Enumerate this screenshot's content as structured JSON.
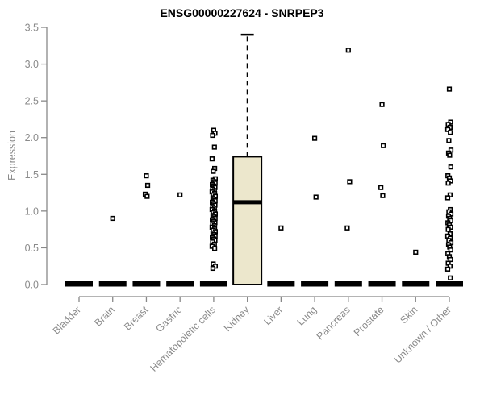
{
  "title": "ENSG00000227624 - SNRPEP3",
  "chart_data": {
    "type": "boxplot",
    "title": "ENSG00000227624 - SNRPEP3",
    "ylabel": "Expression",
    "xlabel": "",
    "ylim": [
      0.0,
      3.5
    ],
    "yticks": [
      0.0,
      0.5,
      1.0,
      1.5,
      2.0,
      2.5,
      3.0,
      3.5
    ],
    "grid": false,
    "legend": false,
    "colors": {
      "box_fill": "#ece7cc",
      "box_stroke": "#000000",
      "collapsed_box": "#000000",
      "axis": "#888888",
      "tick_text": "#8a8a8a",
      "title_text": "#000000",
      "outlier_stroke": "#000000",
      "outlier_fill": "#ffffff",
      "background": "#ffffff"
    },
    "categories": [
      "Bladder",
      "Brain",
      "Breast",
      "Gastric",
      "Hematopoietic cells",
      "Kidney",
      "Liver",
      "Lung",
      "Pancreas",
      "Prostate",
      "Skin",
      "Unknown / Other"
    ],
    "boxes": [
      {
        "category": "Bladder",
        "median": 0.0,
        "q1": 0.0,
        "q3": 0.0,
        "whisker_low": 0.0,
        "whisker_high": 0.0,
        "outliers": []
      },
      {
        "category": "Brain",
        "median": 0.0,
        "q1": 0.0,
        "q3": 0.0,
        "whisker_low": 0.0,
        "whisker_high": 0.0,
        "outliers": [
          0.9
        ]
      },
      {
        "category": "Breast",
        "median": 0.0,
        "q1": 0.0,
        "q3": 0.0,
        "whisker_low": 0.0,
        "whisker_high": 0.0,
        "outliers": [
          1.48,
          1.35,
          1.23,
          1.2
        ]
      },
      {
        "category": "Gastric",
        "median": 0.0,
        "q1": 0.0,
        "q3": 0.0,
        "whisker_low": 0.0,
        "whisker_high": 0.0,
        "outliers": [
          1.22
        ]
      },
      {
        "category": "Hematopoietic cells",
        "median": 0.0,
        "q1": 0.0,
        "q3": 0.0,
        "whisker_low": 0.0,
        "whisker_high": 0.0,
        "outliers": [
          2.1,
          2.06,
          2.03,
          1.87,
          1.71,
          1.58,
          1.54,
          1.44,
          1.42,
          1.4,
          1.38,
          1.36,
          1.34,
          1.32,
          1.3,
          1.28,
          1.26,
          1.24,
          1.22,
          1.2,
          1.18,
          1.16,
          1.14,
          1.12,
          1.1,
          1.08,
          1.06,
          1.04,
          1.02,
          1.0,
          0.98,
          0.96,
          0.94,
          0.92,
          0.9,
          0.88,
          0.86,
          0.84,
          0.82,
          0.8,
          0.78,
          0.76,
          0.74,
          0.72,
          0.7,
          0.68,
          0.66,
          0.64,
          0.62,
          0.6,
          0.58,
          0.55,
          0.52,
          0.49,
          0.28,
          0.25,
          0.22
        ]
      },
      {
        "category": "Kidney",
        "median": 1.12,
        "q1": 0.0,
        "q3": 1.74,
        "whisker_low": 0.0,
        "whisker_high": 3.4,
        "outliers": []
      },
      {
        "category": "Liver",
        "median": 0.0,
        "q1": 0.0,
        "q3": 0.0,
        "whisker_low": 0.0,
        "whisker_high": 0.0,
        "outliers": [
          0.77
        ]
      },
      {
        "category": "Lung",
        "median": 0.0,
        "q1": 0.0,
        "q3": 0.0,
        "whisker_low": 0.0,
        "whisker_high": 0.0,
        "outliers": [
          1.99,
          1.19
        ]
      },
      {
        "category": "Pancreas",
        "median": 0.0,
        "q1": 0.0,
        "q3": 0.0,
        "whisker_low": 0.0,
        "whisker_high": 0.0,
        "outliers": [
          3.19,
          1.4,
          0.77
        ]
      },
      {
        "category": "Prostate",
        "median": 0.0,
        "q1": 0.0,
        "q3": 0.0,
        "whisker_low": 0.0,
        "whisker_high": 0.0,
        "outliers": [
          2.45,
          1.89,
          1.32,
          1.21
        ]
      },
      {
        "category": "Skin",
        "median": 0.0,
        "q1": 0.0,
        "q3": 0.0,
        "whisker_low": 0.0,
        "whisker_high": 0.0,
        "outliers": [
          0.44
        ]
      },
      {
        "category": "Unknown / Other",
        "median": 0.0,
        "q1": 0.0,
        "q3": 0.0,
        "whisker_low": 0.0,
        "whisker_high": 0.0,
        "outliers": [
          2.66,
          2.21,
          2.18,
          2.14,
          2.11,
          2.07,
          1.96,
          1.83,
          1.79,
          1.76,
          1.6,
          1.48,
          1.45,
          1.41,
          1.38,
          1.22,
          1.18,
          1.02,
          0.99,
          0.96,
          0.93,
          0.9,
          0.87,
          0.84,
          0.81,
          0.78,
          0.75,
          0.69,
          0.66,
          0.63,
          0.6,
          0.57,
          0.54,
          0.51,
          0.47,
          0.42,
          0.38,
          0.34,
          0.29,
          0.25,
          0.21,
          0.09
        ]
      }
    ]
  }
}
